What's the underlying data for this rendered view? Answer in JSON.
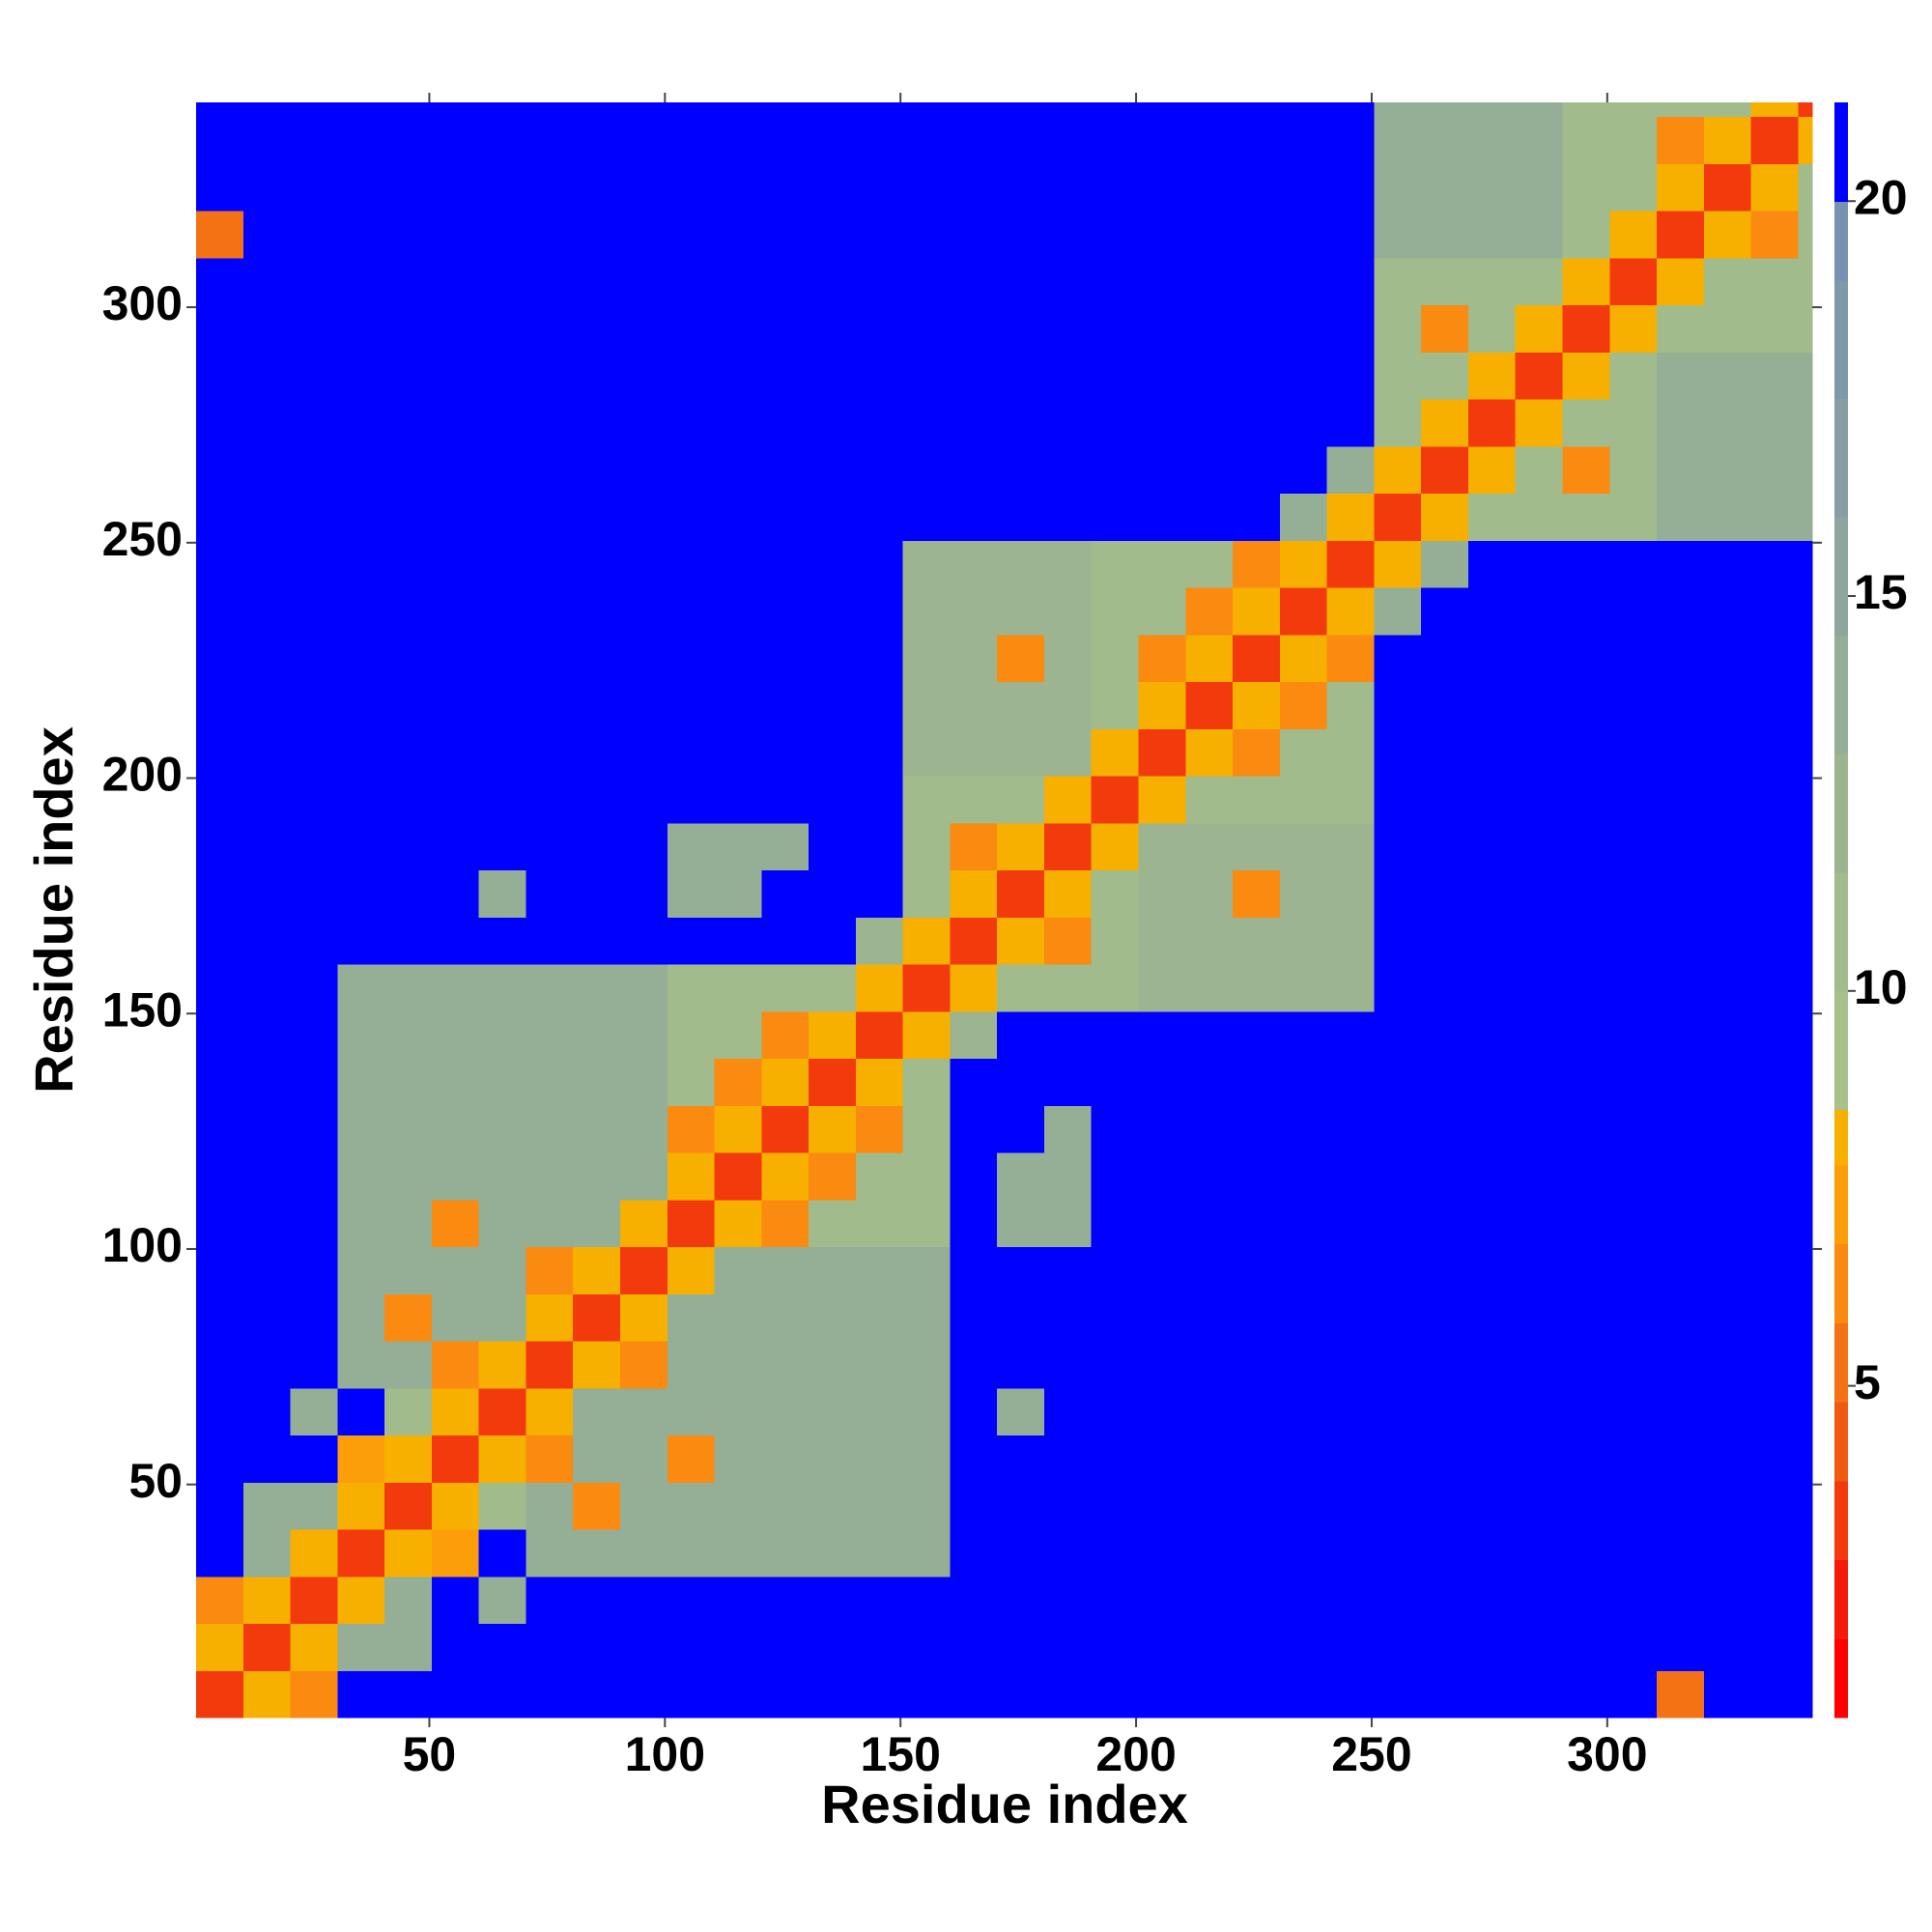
{
  "chart_data": {
    "type": "heatmap",
    "xlabel": "Residue index",
    "ylabel": "Residue index",
    "xlim": [
      0.5,
      343.5
    ],
    "ylim": [
      0.5,
      343.5
    ],
    "xticks": [
      50,
      100,
      150,
      200,
      250,
      300
    ],
    "yticks": [
      50,
      100,
      150,
      200,
      250,
      300
    ],
    "clim": [
      0.8,
      21.25
    ],
    "cticks": [
      5,
      10,
      15,
      20
    ],
    "levels": [
      0.8,
      1.8,
      2.8,
      3.8,
      4.8,
      5.8,
      6.8,
      7.8,
      8.5,
      10,
      11.5,
      13,
      14.5,
      16,
      17.5,
      19,
      20,
      21.25
    ],
    "colors": [
      "#ff0000",
      "#f51a0a",
      "#f23a0c",
      "#f05a10",
      "#f57214",
      "#fa8a10",
      "#fb9e0a",
      "#f7b000",
      "#a8c08a",
      "#a2bb8c",
      "#9cb590",
      "#95ae96",
      "#8ea69c",
      "#879fa2",
      "#7f98aa",
      "#7890b2",
      "#0000ff"
    ],
    "bins": [
      0.5,
      10.5,
      20.5,
      30.5,
      40.5,
      50.5,
      60.5,
      70.5,
      80.5,
      90.5,
      100.5,
      110.5,
      120.5,
      130.5,
      140.5,
      150.5,
      160.5,
      170.5,
      180.5,
      190.5,
      200.5,
      210.5,
      220.5,
      230.5,
      240.5,
      250.5,
      260.5,
      270.5,
      280.5,
      290.5,
      300.5,
      310.5,
      320.5,
      330.5,
      340.5,
      343.5
    ],
    "values": [
      [
        3,
        8,
        6,
        21,
        21,
        21,
        21,
        21,
        21,
        21,
        21,
        21,
        21,
        21,
        21,
        21,
        21,
        21,
        21,
        21,
        21,
        21,
        21,
        21,
        21,
        21,
        21,
        21,
        21,
        21,
        21,
        5,
        21,
        21,
        21
      ],
      [
        8,
        3,
        8,
        13,
        14,
        21,
        21,
        21,
        21,
        21,
        21,
        21,
        21,
        21,
        21,
        21,
        21,
        21,
        21,
        21,
        21,
        21,
        21,
        21,
        21,
        21,
        21,
        21,
        21,
        21,
        21,
        21,
        21,
        21,
        21
      ],
      [
        6,
        8,
        3,
        8,
        13,
        21,
        14,
        21,
        21,
        21,
        21,
        21,
        21,
        21,
        21,
        21,
        21,
        21,
        21,
        21,
        21,
        21,
        21,
        21,
        21,
        21,
        21,
        21,
        21,
        21,
        21,
        21,
        21,
        21,
        21
      ],
      [
        21,
        13,
        8,
        3,
        8,
        7,
        21,
        13,
        13,
        13,
        13,
        13,
        13,
        13,
        13,
        13,
        21,
        21,
        21,
        21,
        21,
        21,
        21,
        21,
        21,
        21,
        21,
        21,
        21,
        21,
        21,
        21,
        21,
        21,
        21
      ],
      [
        21,
        14,
        13,
        8,
        3,
        8,
        10,
        13,
        6,
        13,
        13,
        13,
        13,
        13,
        13,
        13,
        21,
        21,
        21,
        21,
        21,
        21,
        21,
        21,
        21,
        21,
        21,
        21,
        21,
        21,
        21,
        21,
        21,
        21,
        21
      ],
      [
        21,
        21,
        21,
        7,
        8,
        3,
        8,
        6,
        13,
        13,
        6,
        13,
        13,
        13,
        13,
        13,
        21,
        21,
        21,
        21,
        21,
        21,
        21,
        21,
        21,
        21,
        21,
        21,
        21,
        21,
        21,
        21,
        21,
        21,
        21
      ],
      [
        21,
        21,
        14,
        21,
        10,
        8,
        3,
        8,
        13,
        13,
        13,
        13,
        13,
        13,
        13,
        13,
        21,
        14,
        21,
        21,
        21,
        21,
        21,
        21,
        21,
        21,
        21,
        21,
        21,
        21,
        21,
        21,
        21,
        21,
        21
      ],
      [
        21,
        21,
        21,
        13,
        13,
        6,
        8,
        3,
        8,
        6,
        13,
        13,
        13,
        13,
        13,
        13,
        21,
        21,
        21,
        21,
        21,
        21,
        21,
        21,
        21,
        21,
        21,
        21,
        21,
        21,
        21,
        21,
        21,
        21,
        21
      ],
      [
        21,
        21,
        21,
        13,
        6,
        13,
        13,
        8,
        3,
        8,
        13,
        13,
        13,
        13,
        13,
        13,
        21,
        21,
        21,
        21,
        21,
        21,
        21,
        21,
        21,
        21,
        21,
        21,
        21,
        21,
        21,
        21,
        21,
        21,
        21
      ],
      [
        21,
        21,
        21,
        13,
        13,
        13,
        13,
        6,
        8,
        3,
        8,
        13,
        13,
        13,
        13,
        13,
        21,
        21,
        21,
        21,
        21,
        21,
        21,
        21,
        21,
        21,
        21,
        21,
        21,
        21,
        21,
        21,
        21,
        21,
        21
      ],
      [
        21,
        21,
        21,
        13,
        13,
        6,
        13,
        13,
        13,
        8,
        3,
        8,
        6,
        11,
        11,
        11,
        21,
        14,
        14,
        21,
        21,
        21,
        21,
        21,
        21,
        21,
        21,
        21,
        21,
        21,
        21,
        21,
        21,
        21,
        21
      ],
      [
        21,
        21,
        21,
        13,
        13,
        13,
        13,
        13,
        13,
        13,
        8,
        3,
        8,
        6,
        11,
        11,
        21,
        14,
        14,
        21,
        21,
        21,
        21,
        21,
        21,
        21,
        21,
        21,
        21,
        21,
        21,
        21,
        21,
        21,
        21
      ],
      [
        21,
        21,
        21,
        13,
        13,
        13,
        13,
        13,
        13,
        13,
        6,
        8,
        3,
        8,
        6,
        11,
        21,
        21,
        14,
        21,
        21,
        21,
        21,
        21,
        21,
        21,
        21,
        21,
        21,
        21,
        21,
        21,
        21,
        21,
        21
      ],
      [
        21,
        21,
        21,
        13,
        13,
        13,
        13,
        13,
        13,
        13,
        11,
        6,
        8,
        3,
        8,
        11,
        21,
        21,
        21,
        21,
        21,
        21,
        21,
        21,
        21,
        21,
        21,
        21,
        21,
        21,
        21,
        21,
        21,
        21,
        21
      ],
      [
        21,
        21,
        21,
        13,
        13,
        13,
        13,
        13,
        13,
        13,
        11,
        11,
        6,
        8,
        3,
        8,
        12,
        21,
        21,
        21,
        21,
        21,
        21,
        21,
        21,
        21,
        21,
        21,
        21,
        21,
        21,
        21,
        21,
        21,
        21
      ],
      [
        21,
        21,
        21,
        13,
        13,
        13,
        13,
        13,
        13,
        13,
        11,
        11,
        11,
        11,
        8,
        3,
        8,
        11,
        11,
        11,
        12,
        12,
        12,
        12,
        12,
        21,
        21,
        21,
        21,
        21,
        21,
        21,
        21,
        21,
        21
      ],
      [
        21,
        21,
        21,
        21,
        21,
        21,
        21,
        21,
        21,
        21,
        21,
        21,
        21,
        21,
        12,
        8,
        3,
        8,
        6,
        11,
        12,
        12,
        12,
        12,
        12,
        21,
        21,
        21,
        21,
        21,
        21,
        21,
        21,
        21,
        21
      ],
      [
        21,
        21,
        21,
        21,
        21,
        21,
        14,
        21,
        21,
        21,
        14,
        14,
        21,
        21,
        21,
        11,
        8,
        3,
        8,
        11,
        12,
        12,
        6,
        12,
        12,
        21,
        21,
        21,
        21,
        21,
        21,
        21,
        21,
        21,
        21
      ],
      [
        21,
        21,
        21,
        21,
        21,
        21,
        21,
        21,
        21,
        21,
        14,
        14,
        14,
        21,
        21,
        11,
        6,
        8,
        3,
        8,
        12,
        12,
        12,
        12,
        12,
        21,
        21,
        21,
        21,
        21,
        21,
        21,
        21,
        21,
        21
      ],
      [
        21,
        21,
        21,
        21,
        21,
        21,
        21,
        21,
        21,
        21,
        21,
        21,
        21,
        21,
        21,
        11,
        11,
        11,
        8,
        3,
        8,
        10,
        10,
        10,
        10,
        21,
        21,
        21,
        21,
        21,
        21,
        21,
        21,
        21,
        21
      ],
      [
        21,
        21,
        21,
        21,
        21,
        21,
        21,
        21,
        21,
        21,
        21,
        21,
        21,
        21,
        21,
        12,
        12,
        12,
        12,
        8,
        3,
        8,
        6,
        10,
        10,
        21,
        21,
        21,
        21,
        21,
        21,
        21,
        21,
        21,
        21
      ],
      [
        21,
        21,
        21,
        21,
        21,
        21,
        21,
        21,
        21,
        21,
        21,
        21,
        21,
        21,
        21,
        12,
        12,
        12,
        12,
        10,
        8,
        3,
        8,
        6,
        10,
        21,
        21,
        21,
        21,
        21,
        21,
        21,
        21,
        21,
        21
      ],
      [
        21,
        21,
        21,
        21,
        21,
        21,
        21,
        21,
        21,
        21,
        21,
        21,
        21,
        21,
        21,
        12,
        12,
        6,
        12,
        10,
        6,
        8,
        3,
        8,
        6,
        21,
        21,
        21,
        21,
        21,
        21,
        21,
        21,
        21,
        21
      ],
      [
        21,
        21,
        21,
        21,
        21,
        21,
        21,
        21,
        21,
        21,
        21,
        21,
        21,
        21,
        21,
        12,
        12,
        12,
        12,
        10,
        10,
        6,
        8,
        3,
        8,
        13,
        21,
        21,
        21,
        21,
        21,
        21,
        21,
        21,
        21
      ],
      [
        21,
        21,
        21,
        21,
        21,
        21,
        21,
        21,
        21,
        21,
        21,
        21,
        21,
        21,
        21,
        12,
        12,
        12,
        12,
        10,
        10,
        10,
        6,
        8,
        3,
        8,
        13,
        21,
        21,
        21,
        21,
        21,
        21,
        21,
        21
      ],
      [
        21,
        21,
        21,
        21,
        21,
        21,
        21,
        21,
        21,
        21,
        21,
        21,
        21,
        21,
        21,
        21,
        21,
        21,
        21,
        21,
        21,
        21,
        21,
        13,
        8,
        3,
        8,
        11,
        11,
        11,
        11,
        14,
        14,
        14,
        14
      ],
      [
        21,
        21,
        21,
        21,
        21,
        21,
        21,
        21,
        21,
        21,
        21,
        21,
        21,
        21,
        21,
        21,
        21,
        21,
        21,
        21,
        21,
        21,
        21,
        21,
        13,
        8,
        3,
        8,
        11,
        6,
        11,
        14,
        14,
        14,
        14
      ],
      [
        21,
        21,
        21,
        21,
        21,
        21,
        21,
        21,
        21,
        21,
        21,
        21,
        21,
        21,
        21,
        21,
        21,
        21,
        21,
        21,
        21,
        21,
        21,
        21,
        21,
        11,
        8,
        3,
        8,
        11,
        11,
        14,
        14,
        14,
        14
      ],
      [
        21,
        21,
        21,
        21,
        21,
        21,
        21,
        21,
        21,
        21,
        21,
        21,
        21,
        21,
        21,
        21,
        21,
        21,
        21,
        21,
        21,
        21,
        21,
        21,
        21,
        11,
        11,
        8,
        3,
        8,
        11,
        14,
        14,
        14,
        14
      ],
      [
        21,
        21,
        21,
        21,
        21,
        21,
        21,
        21,
        21,
        21,
        21,
        21,
        21,
        21,
        21,
        21,
        21,
        21,
        21,
        21,
        21,
        21,
        21,
        21,
        21,
        11,
        6,
        11,
        8,
        3,
        8,
        11,
        11,
        11,
        11
      ],
      [
        21,
        21,
        21,
        21,
        21,
        21,
        21,
        21,
        21,
        21,
        21,
        21,
        21,
        21,
        21,
        21,
        21,
        21,
        21,
        21,
        21,
        21,
        21,
        21,
        21,
        11,
        11,
        11,
        11,
        8,
        3,
        8,
        11,
        11,
        11
      ],
      [
        5,
        21,
        21,
        21,
        21,
        21,
        21,
        21,
        21,
        21,
        21,
        21,
        21,
        21,
        21,
        21,
        21,
        21,
        21,
        21,
        21,
        21,
        21,
        21,
        21,
        14,
        14,
        14,
        14,
        11,
        8,
        3,
        8,
        6,
        11
      ],
      [
        21,
        21,
        21,
        21,
        21,
        21,
        21,
        21,
        21,
        21,
        21,
        21,
        21,
        21,
        21,
        21,
        21,
        21,
        21,
        21,
        21,
        21,
        21,
        21,
        21,
        14,
        14,
        14,
        14,
        11,
        11,
        8,
        3,
        8,
        11
      ],
      [
        21,
        21,
        21,
        21,
        21,
        21,
        21,
        21,
        21,
        21,
        21,
        21,
        21,
        21,
        21,
        21,
        21,
        21,
        21,
        21,
        21,
        21,
        21,
        21,
        21,
        14,
        14,
        14,
        14,
        11,
        11,
        6,
        8,
        3,
        8
      ],
      [
        21,
        21,
        21,
        21,
        21,
        21,
        21,
        21,
        21,
        21,
        21,
        21,
        21,
        21,
        21,
        21,
        21,
        21,
        21,
        21,
        21,
        21,
        21,
        21,
        21,
        14,
        14,
        14,
        14,
        11,
        11,
        11,
        11,
        8,
        3
      ]
    ]
  }
}
